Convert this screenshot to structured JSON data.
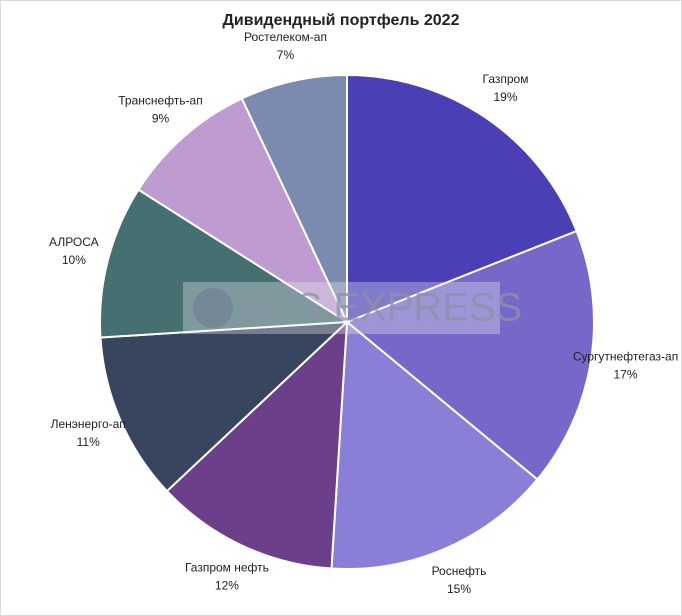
{
  "chart_data": {
    "type": "pie",
    "title": "Дивидендный портфель 2022",
    "categories": [
      "Газпром",
      "Сургутнефтегаз-ап",
      "Роснефть",
      "Газпром нефть",
      "Ленэнерго-ап",
      "АЛРОСА",
      "Транснефть-ап",
      "Ростелеком-ап"
    ],
    "values": [
      19,
      17,
      15,
      12,
      11,
      10,
      9,
      7
    ],
    "value_labels": [
      "19%",
      "17%",
      "15%",
      "12%",
      "11%",
      "10%",
      "9%",
      "7%"
    ],
    "colors": [
      "#4a3fb5",
      "#7667c9",
      "#8a7fd6",
      "#6b3f8a",
      "#38455e",
      "#456f70",
      "#be9bd1",
      "#7b8aae"
    ],
    "watermark": "BCS EXPRESS"
  }
}
